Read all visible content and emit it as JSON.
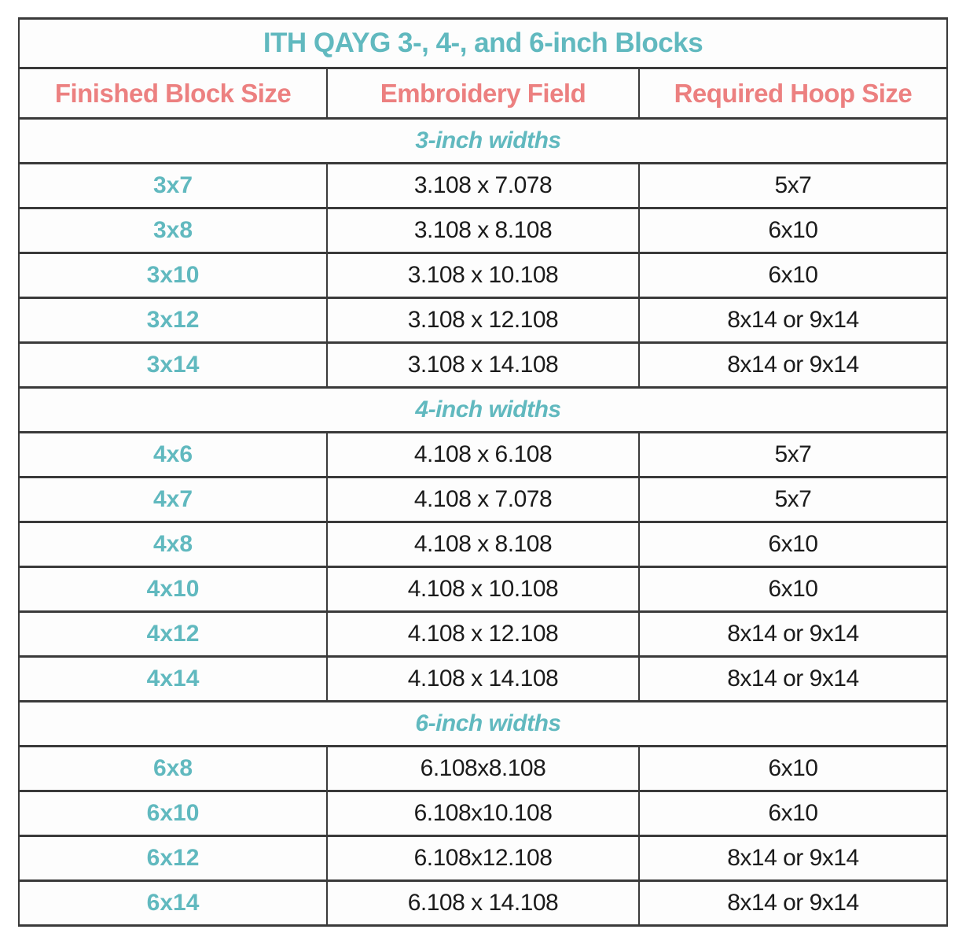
{
  "table": {
    "title": "ITH QAYG 3-, 4-, and 6-inch Blocks",
    "columns": [
      "Finished Block Size",
      "Embroidery Field",
      "Required Hoop Size"
    ],
    "sections": [
      {
        "label": "3-inch widths",
        "rows": [
          [
            "3x7",
            "3.108 x 7.078",
            "5x7"
          ],
          [
            "3x8",
            "3.108 x 8.108",
            "6x10"
          ],
          [
            "3x10",
            "3.108 x 10.108",
            "6x10"
          ],
          [
            "3x12",
            "3.108 x 12.108",
            "8x14 or 9x14"
          ],
          [
            "3x14",
            "3.108 x 14.108",
            "8x14 or 9x14"
          ]
        ]
      },
      {
        "label": "4-inch widths",
        "rows": [
          [
            "4x6",
            "4.108 x 6.108",
            "5x7"
          ],
          [
            "4x7",
            "4.108 x 7.078",
            "5x7"
          ],
          [
            "4x8",
            "4.108 x 8.108",
            "6x10"
          ],
          [
            "4x10",
            "4.108 x 10.108",
            "6x10"
          ],
          [
            "4x12",
            "4.108 x 12.108",
            "8x14 or 9x14"
          ],
          [
            "4x14",
            "4.108 x 14.108",
            "8x14 or 9x14"
          ]
        ]
      },
      {
        "label": "6-inch widths",
        "rows": [
          [
            "6x8",
            "6.108x8.108",
            "6x10"
          ],
          [
            "6x10",
            "6.108x10.108",
            "6x10"
          ],
          [
            "6x12",
            "6.108x12.108",
            "8x14 or 9x14"
          ],
          [
            "6x14",
            "6.108 x 14.108",
            "8x14 or 9x14"
          ]
        ]
      }
    ],
    "colors": {
      "teal": "#61b9bf",
      "coral": "#ec8080",
      "text": "#1b1b1b",
      "border": "#3a3a3a"
    }
  }
}
